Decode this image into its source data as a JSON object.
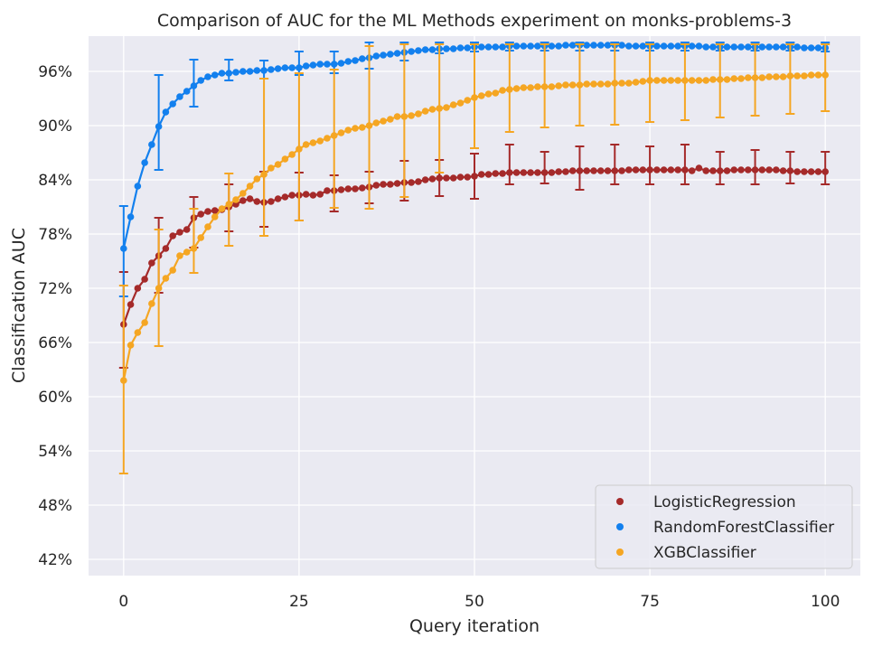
{
  "chart_data": {
    "type": "line",
    "title": "Comparison of AUC for the ML Methods experiment on monks-problems-3",
    "xlabel": "Query iteration",
    "ylabel": "Classification AUC",
    "xlim": [
      -5,
      105
    ],
    "ylim": [
      40.2,
      99.9
    ],
    "xticks": [
      0,
      25,
      50,
      75,
      100
    ],
    "yticks": [
      42,
      48,
      54,
      60,
      66,
      72,
      78,
      84,
      90,
      96
    ],
    "ytick_suffix": "%",
    "grid": true,
    "legend_position": "lower-right",
    "background": "#EAEAF2",
    "series": [
      {
        "name": "LogisticRegression",
        "color": "#A52A2A",
        "x_step": 1,
        "values": [
          68,
          70.2,
          72,
          73,
          74.8,
          75.6,
          76.4,
          77.8,
          78.2,
          78.5,
          79.8,
          80.2,
          80.5,
          80.6,
          80.7,
          81,
          81.3,
          81.7,
          81.9,
          81.6,
          81.5,
          81.6,
          81.9,
          82.1,
          82.3,
          82.3,
          82.4,
          82.3,
          82.4,
          82.8,
          82.8,
          82.9,
          83,
          83,
          83.1,
          83.2,
          83.4,
          83.5,
          83.5,
          83.6,
          83.7,
          83.7,
          83.8,
          84,
          84.1,
          84.2,
          84.2,
          84.2,
          84.3,
          84.3,
          84.4,
          84.6,
          84.6,
          84.7,
          84.7,
          84.8,
          84.8,
          84.8,
          84.8,
          84.8,
          84.8,
          84.8,
          84.9,
          84.9,
          85,
          85,
          85,
          85,
          85,
          85,
          85,
          85,
          85.1,
          85.1,
          85.1,
          85.1,
          85.1,
          85.1,
          85.1,
          85.1,
          85.1,
          85,
          85.3,
          85,
          85,
          85,
          85,
          85.1,
          85.1,
          85.1,
          85.1,
          85.1,
          85.1,
          85.1,
          85,
          85,
          84.9,
          84.9,
          84.9,
          84.9,
          84.9
        ],
        "errorbars": [
          {
            "x": 0,
            "low": 63.2,
            "high": 73.8
          },
          {
            "x": 5,
            "low": 71.5,
            "high": 79.8
          },
          {
            "x": 10,
            "low": 76.5,
            "high": 82.1
          },
          {
            "x": 15,
            "low": 78.3,
            "high": 83.5
          },
          {
            "x": 20,
            "low": 78.8,
            "high": 84.9
          },
          {
            "x": 25,
            "low": 79.5,
            "high": 84.8
          },
          {
            "x": 30,
            "low": 80.5,
            "high": 84.5
          },
          {
            "x": 35,
            "low": 81.4,
            "high": 84.9
          },
          {
            "x": 40,
            "low": 81.7,
            "high": 86.1
          },
          {
            "x": 45,
            "low": 82.2,
            "high": 86.2
          },
          {
            "x": 50,
            "low": 81.9,
            "high": 86.9
          },
          {
            "x": 55,
            "low": 83.5,
            "high": 87.9
          },
          {
            "x": 60,
            "low": 83.6,
            "high": 87.1
          },
          {
            "x": 65,
            "low": 82.9,
            "high": 87.7
          },
          {
            "x": 70,
            "low": 83.5,
            "high": 87.9
          },
          {
            "x": 75,
            "low": 83.5,
            "high": 87.7
          },
          {
            "x": 80,
            "low": 83.5,
            "high": 87.9
          },
          {
            "x": 85,
            "low": 83.5,
            "high": 87.1
          },
          {
            "x": 90,
            "low": 83.5,
            "high": 87.3
          },
          {
            "x": 95,
            "low": 83.6,
            "high": 87.1
          },
          {
            "x": 100,
            "low": 83.5,
            "high": 87.1
          }
        ]
      },
      {
        "name": "RandomForestClassifier",
        "color": "#1380EE",
        "x_step": 1,
        "values": [
          76.4,
          79.9,
          83.3,
          85.9,
          87.9,
          89.9,
          91.5,
          92.4,
          93.2,
          93.8,
          94.4,
          95,
          95.4,
          95.6,
          95.8,
          95.8,
          95.9,
          96,
          96,
          96.1,
          96.1,
          96.2,
          96.3,
          96.4,
          96.4,
          96.4,
          96.6,
          96.7,
          96.8,
          96.8,
          96.8,
          96.9,
          97.1,
          97.2,
          97.4,
          97.5,
          97.7,
          97.8,
          97.9,
          98,
          98.1,
          98.2,
          98.3,
          98.4,
          98.4,
          98.5,
          98.5,
          98.5,
          98.6,
          98.6,
          98.7,
          98.7,
          98.7,
          98.7,
          98.7,
          98.8,
          98.8,
          98.8,
          98.8,
          98.8,
          98.8,
          98.8,
          98.8,
          98.9,
          98.9,
          98.9,
          98.9,
          98.9,
          98.9,
          98.9,
          98.9,
          98.9,
          98.8,
          98.8,
          98.8,
          98.8,
          98.8,
          98.8,
          98.8,
          98.8,
          98.8,
          98.8,
          98.8,
          98.7,
          98.7,
          98.7,
          98.7,
          98.7,
          98.7,
          98.7,
          98.7,
          98.7,
          98.7,
          98.7,
          98.7,
          98.7,
          98.7,
          98.6,
          98.6,
          98.6,
          98.6
        ],
        "errorbars": [
          {
            "x": 0,
            "low": 71.1,
            "high": 81.1
          },
          {
            "x": 5,
            "low": 85.1,
            "high": 95.6
          },
          {
            "x": 10,
            "low": 92.1,
            "high": 97.3
          },
          {
            "x": 15,
            "low": 95,
            "high": 97.3
          },
          {
            "x": 20,
            "low": 95.2,
            "high": 97.2
          },
          {
            "x": 25,
            "low": 95.6,
            "high": 98.2
          },
          {
            "x": 30,
            "low": 95.8,
            "high": 98.2
          },
          {
            "x": 35,
            "low": 96.3,
            "high": 99.2
          },
          {
            "x": 40,
            "low": 97.2,
            "high": 99.2
          },
          {
            "x": 45,
            "low": 98,
            "high": 99.2
          },
          {
            "x": 50,
            "low": 98.2,
            "high": 99.2
          },
          {
            "x": 55,
            "low": 98.3,
            "high": 99.2
          },
          {
            "x": 60,
            "low": 98.3,
            "high": 99.2
          },
          {
            "x": 65,
            "low": 98.3,
            "high": 99.2
          },
          {
            "x": 70,
            "low": 98.3,
            "high": 99.2
          },
          {
            "x": 75,
            "low": 98.3,
            "high": 99.2
          },
          {
            "x": 80,
            "low": 98.3,
            "high": 99.2
          },
          {
            "x": 85,
            "low": 98.3,
            "high": 99.2
          },
          {
            "x": 90,
            "low": 98.3,
            "high": 99.2
          },
          {
            "x": 95,
            "low": 98.3,
            "high": 99.2
          },
          {
            "x": 100,
            "low": 98.2,
            "high": 99.2
          }
        ]
      },
      {
        "name": "XGBClassifier",
        "color": "#F5A623",
        "x_step": 1,
        "values": [
          61.8,
          65.7,
          67.1,
          68.2,
          70.3,
          72,
          73.1,
          74,
          75.6,
          76,
          76.4,
          77.6,
          78.8,
          79.9,
          80.8,
          81.3,
          81.8,
          82.5,
          83.3,
          84.1,
          84.6,
          85.3,
          85.7,
          86.3,
          86.8,
          87.4,
          87.9,
          88.1,
          88.3,
          88.6,
          88.9,
          89.2,
          89.5,
          89.7,
          89.8,
          90,
          90.3,
          90.5,
          90.7,
          91,
          91,
          91.1,
          91.3,
          91.6,
          91.8,
          91.9,
          92,
          92.3,
          92.5,
          92.8,
          93.1,
          93.3,
          93.5,
          93.6,
          93.9,
          94,
          94.1,
          94.2,
          94.2,
          94.3,
          94.3,
          94.3,
          94.4,
          94.5,
          94.5,
          94.5,
          94.6,
          94.6,
          94.6,
          94.6,
          94.7,
          94.7,
          94.7,
          94.8,
          94.9,
          95,
          95,
          95,
          95,
          95,
          95,
          95,
          95,
          95,
          95.1,
          95.1,
          95.1,
          95.2,
          95.2,
          95.3,
          95.3,
          95.3,
          95.4,
          95.4,
          95.4,
          95.5,
          95.5,
          95.5,
          95.6,
          95.6,
          95.6
        ],
        "errorbars": [
          {
            "x": 0,
            "low": 51.5,
            "high": 72.3
          },
          {
            "x": 5,
            "low": 65.6,
            "high": 78.5
          },
          {
            "x": 10,
            "low": 73.7,
            "high": 80.8
          },
          {
            "x": 15,
            "low": 76.7,
            "high": 84.7
          },
          {
            "x": 20,
            "low": 77.8,
            "high": 95.2
          },
          {
            "x": 25,
            "low": 79.5,
            "high": 95.8
          },
          {
            "x": 30,
            "low": 80.9,
            "high": 96.2
          },
          {
            "x": 35,
            "low": 80.8,
            "high": 98.8
          },
          {
            "x": 40,
            "low": 82.1,
            "high": 99
          },
          {
            "x": 45,
            "low": 84.8,
            "high": 99
          },
          {
            "x": 50,
            "low": 87.5,
            "high": 99
          },
          {
            "x": 55,
            "low": 89.3,
            "high": 99
          },
          {
            "x": 60,
            "low": 89.8,
            "high": 99
          },
          {
            "x": 65,
            "low": 90,
            "high": 99
          },
          {
            "x": 70,
            "low": 90.1,
            "high": 99
          },
          {
            "x": 75,
            "low": 90.4,
            "high": 99
          },
          {
            "x": 80,
            "low": 90.6,
            "high": 99
          },
          {
            "x": 85,
            "low": 90.9,
            "high": 99
          },
          {
            "x": 90,
            "low": 91.1,
            "high": 99
          },
          {
            "x": 95,
            "low": 91.3,
            "high": 99
          },
          {
            "x": 100,
            "low": 91.6,
            "high": 99
          }
        ]
      }
    ]
  }
}
